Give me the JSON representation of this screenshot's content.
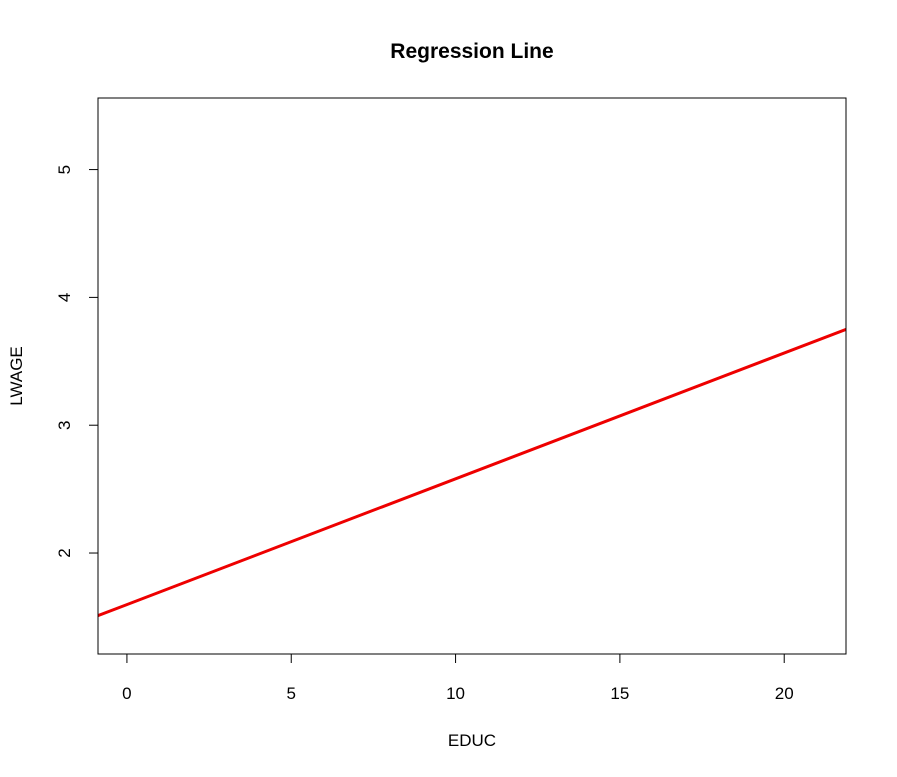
{
  "chart_data": {
    "type": "line",
    "title": "Regression Line",
    "xlabel": "EDUC",
    "ylabel": "LWAGE",
    "xlim": [
      -0.88,
      21.88
    ],
    "ylim": [
      1.21,
      5.56
    ],
    "x_ticks": [
      0,
      5,
      10,
      15,
      20
    ],
    "x_tick_labels": [
      "0",
      "5",
      "10",
      "15",
      "20"
    ],
    "y_ticks": [
      2,
      3,
      4,
      5
    ],
    "y_tick_labels": [
      "2",
      "3",
      "4",
      "5"
    ],
    "grid": false,
    "legend": false,
    "series": [
      {
        "color": "#ee0000",
        "x": [
          -0.88,
          21.88
        ],
        "y": [
          1.51,
          3.75
        ]
      }
    ]
  }
}
